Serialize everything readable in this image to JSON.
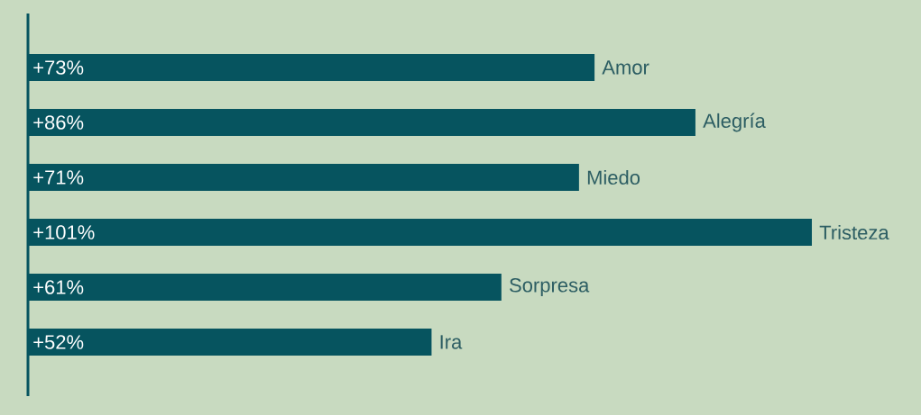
{
  "chart_data": {
    "type": "bar",
    "orientation": "horizontal",
    "categories": [
      "Amor",
      "Alegría",
      "Miedo",
      "Tristeza",
      "Sorpresa",
      "Ira"
    ],
    "values": [
      73,
      86,
      71,
      101,
      61,
      52
    ],
    "value_labels": [
      "+73%",
      "+86%",
      "+71%",
      "+101%",
      "+61%",
      "+52%"
    ],
    "color": "#06545f"
  }
}
